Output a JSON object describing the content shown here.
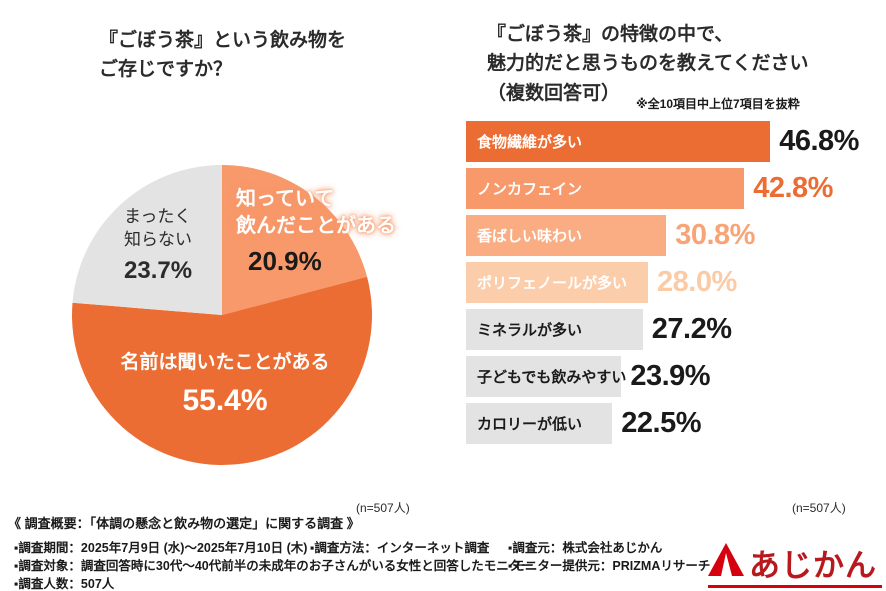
{
  "colors": {
    "accent_dark_orange": "#EC6D33",
    "accent_salmon": "#F8996B",
    "accent_light_salmon": "#FAAD83",
    "accent_peach": "#FCCDAB",
    "neutral_gray": "#E3E3E3",
    "text_dark": "#1A1A1A",
    "logo_red": "#D7000F",
    "logo_text_red": "#B8191F"
  },
  "chart_data": [
    {
      "type": "pie",
      "title": "『ごぼう茶』という飲み物をご存じですか？",
      "title_lines": [
        "『ごぼう茶』という飲み物を",
        "ご存じですか？"
      ],
      "labels": [
        "知っていて飲んだことがある",
        "名前は聞いたことがある",
        "まったく知らない"
      ],
      "values": [
        20.9,
        55.4,
        23.7
      ],
      "colors": [
        "#F8996B",
        "#EC6D33",
        "#E3E3E3"
      ],
      "label_lines": [
        [
          "知っていて",
          "飲んだことがある"
        ],
        [
          "名前は聞いたことがある"
        ],
        [
          "まったく",
          "知らない"
        ]
      ],
      "start_angle_deg": -90,
      "clockwise": true,
      "n_label": "(n=507人)"
    },
    {
      "type": "bar",
      "orientation": "horizontal",
      "title": "『ごぼう茶』の特徴の中で、魅力的だと思うものを教えてください（複数回答可）",
      "title_lines": [
        "『ごぼう茶』の特徴の中で、",
        "魅力的だと思うものを教えてください",
        "（複数回答可）"
      ],
      "note": "※全10項目中上位7項目を抜粋",
      "categories": [
        "食物繊維が多い",
        "ノンカフェイン",
        "香ばしい味わい",
        "ポリフェノールが多い",
        "ミネラルが多い",
        "子どもでも飲みやすい",
        "カロリーが低い"
      ],
      "values": [
        46.8,
        42.8,
        30.8,
        28.0,
        27.2,
        23.9,
        22.5
      ],
      "bar_colors": [
        "#EC6D33",
        "#F8996B",
        "#FAAD83",
        "#FCCDAB",
        "#E3E3E3",
        "#E3E3E3",
        "#E3E3E3"
      ],
      "label_colors": [
        "#FFFFFF",
        "#FFFFFF",
        "#FFFFFF",
        "#FFFFFF",
        "#1A1A1A",
        "#1A1A1A",
        "#1A1A1A"
      ],
      "value_colors": [
        "#1A1A1A",
        "#EC6D33",
        "#F9A476",
        "#FBCBA6",
        "#1A1A1A",
        "#1A1A1A",
        "#1A1A1A"
      ],
      "xlim": [
        0,
        50
      ],
      "grid": false,
      "legend": "none",
      "n_label": "(n=507人)"
    }
  ],
  "footer": {
    "heading": "《 調査概要：「体調の懸念と飲み物の選定」に関する調査 》",
    "rows": [
      [
        "▪調査期間：2025年7月9日 (水)〜2025年7月10日 (木)",
        "▪調査方法：インターネット調査",
        "▪調査元：株式会社あじかん"
      ],
      [
        "▪調査対象：調査回答時に30代〜40代前半の未成年のお子さんがいる女性と回答したモニター",
        "▪モニター提供元：PRIZMAリサーチ"
      ],
      [
        "▪調査人数：507人"
      ]
    ]
  },
  "logo": {
    "text": "あじかん",
    "mark": "ajikan-triangle-mark"
  }
}
